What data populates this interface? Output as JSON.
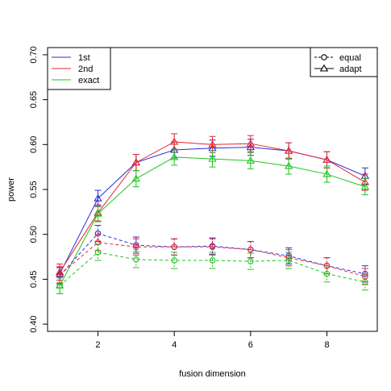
{
  "chart_data": {
    "type": "line",
    "title": "",
    "xlabel": "fusion dimension",
    "ylabel": "power",
    "xlim": [
      0.68,
      9.32
    ],
    "ylim": [
      0.392,
      0.708
    ],
    "x_ticks": [
      2,
      4,
      6,
      8
    ],
    "y_ticks": [
      0.4,
      0.45,
      0.5,
      0.55,
      0.6,
      0.65,
      0.7
    ],
    "x": [
      1,
      2,
      3,
      4,
      5,
      6,
      7,
      8,
      9
    ],
    "grid": false,
    "legend_method": {
      "placement": "top-left",
      "entries": [
        {
          "label": "1st",
          "color": "#2b2bd9"
        },
        {
          "label": "2nd",
          "color": "#e6262e"
        },
        {
          "label": "exact",
          "color": "#20c420"
        }
      ]
    },
    "legend_scheme": {
      "placement": "top-right",
      "entries": [
        {
          "label": "equal",
          "style": "dashed",
          "marker": "circle"
        },
        {
          "label": "adapt",
          "style": "solid",
          "marker": "triangle"
        }
      ]
    },
    "series": [
      {
        "name": "1st",
        "scheme": "adapt",
        "color": "#2b2bd9",
        "values": [
          0.456,
          0.54,
          0.58,
          0.594,
          0.596,
          0.597,
          0.593,
          0.583,
          0.565
        ],
        "err": [
          0.007,
          0.009,
          0.009,
          0.009,
          0.009,
          0.009,
          0.009,
          0.009,
          0.009
        ]
      },
      {
        "name": "2nd",
        "scheme": "adapt",
        "color": "#e6262e",
        "values": [
          0.458,
          0.524,
          0.58,
          0.603,
          0.6,
          0.601,
          0.593,
          0.583,
          0.558
        ],
        "err": [
          0.009,
          0.009,
          0.009,
          0.009,
          0.009,
          0.009,
          0.009,
          0.009,
          0.009
        ]
      },
      {
        "name": "exact",
        "scheme": "adapt",
        "color": "#20c420",
        "values": [
          0.443,
          0.523,
          0.562,
          0.586,
          0.584,
          0.582,
          0.576,
          0.567,
          0.553
        ],
        "err": [
          0.009,
          0.009,
          0.009,
          0.009,
          0.009,
          0.009,
          0.009,
          0.009,
          0.009
        ]
      },
      {
        "name": "1st",
        "scheme": "equal",
        "color": "#2b2bd9",
        "values": [
          0.454,
          0.501,
          0.488,
          0.486,
          0.487,
          0.483,
          0.476,
          0.465,
          0.456
        ],
        "err": [
          0.009,
          0.009,
          0.009,
          0.009,
          0.009,
          0.009,
          0.009,
          0.009,
          0.009
        ]
      },
      {
        "name": "2nd",
        "scheme": "equal",
        "color": "#e6262e",
        "values": [
          0.455,
          0.491,
          0.486,
          0.486,
          0.486,
          0.483,
          0.474,
          0.465,
          0.453
        ],
        "err": [
          0.009,
          0.009,
          0.009,
          0.009,
          0.009,
          0.009,
          0.009,
          0.009,
          0.009
        ]
      },
      {
        "name": "exact",
        "scheme": "equal",
        "color": "#20c420",
        "values": [
          0.443,
          0.48,
          0.472,
          0.471,
          0.471,
          0.47,
          0.471,
          0.456,
          0.447
        ],
        "err": [
          0.009,
          0.009,
          0.009,
          0.009,
          0.009,
          0.009,
          0.009,
          0.009,
          0.009
        ]
      }
    ]
  }
}
